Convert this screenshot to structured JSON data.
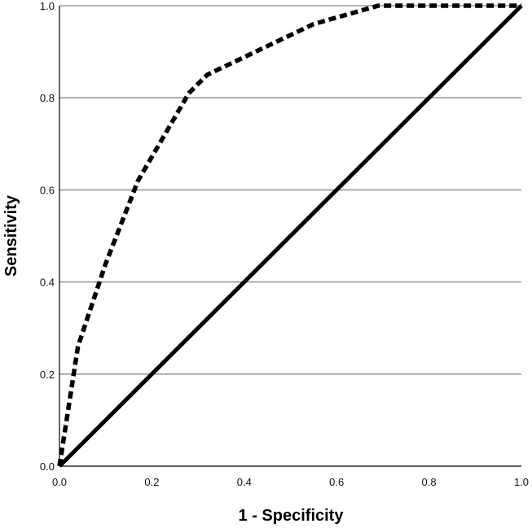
{
  "chart_data": {
    "type": "line",
    "xlabel": "1 - Specificity",
    "ylabel": "Sensitivity",
    "xlim": [
      0.0,
      1.0
    ],
    "ylim": [
      0.0,
      1.0
    ],
    "x_ticks": [
      "0.0",
      "0.2",
      "0.4",
      "0.6",
      "0.8",
      "1.0"
    ],
    "y_ticks": [
      "0.0",
      "0.2",
      "0.4",
      "0.6",
      "0.8",
      "1.0"
    ],
    "grid": "horizontal",
    "series": [
      {
        "style": "dashed",
        "color": "#000000",
        "x": [
          0.0,
          0.04,
          0.1,
          0.17,
          0.28,
          0.32,
          0.55,
          0.69,
          1.0
        ],
        "y": [
          0.0,
          0.26,
          0.44,
          0.62,
          0.81,
          0.85,
          0.96,
          1.0,
          1.0
        ]
      },
      {
        "style": "solid",
        "color": "#000000",
        "x": [
          0.0,
          1.0
        ],
        "y": [
          0.0,
          1.0
        ]
      }
    ]
  }
}
